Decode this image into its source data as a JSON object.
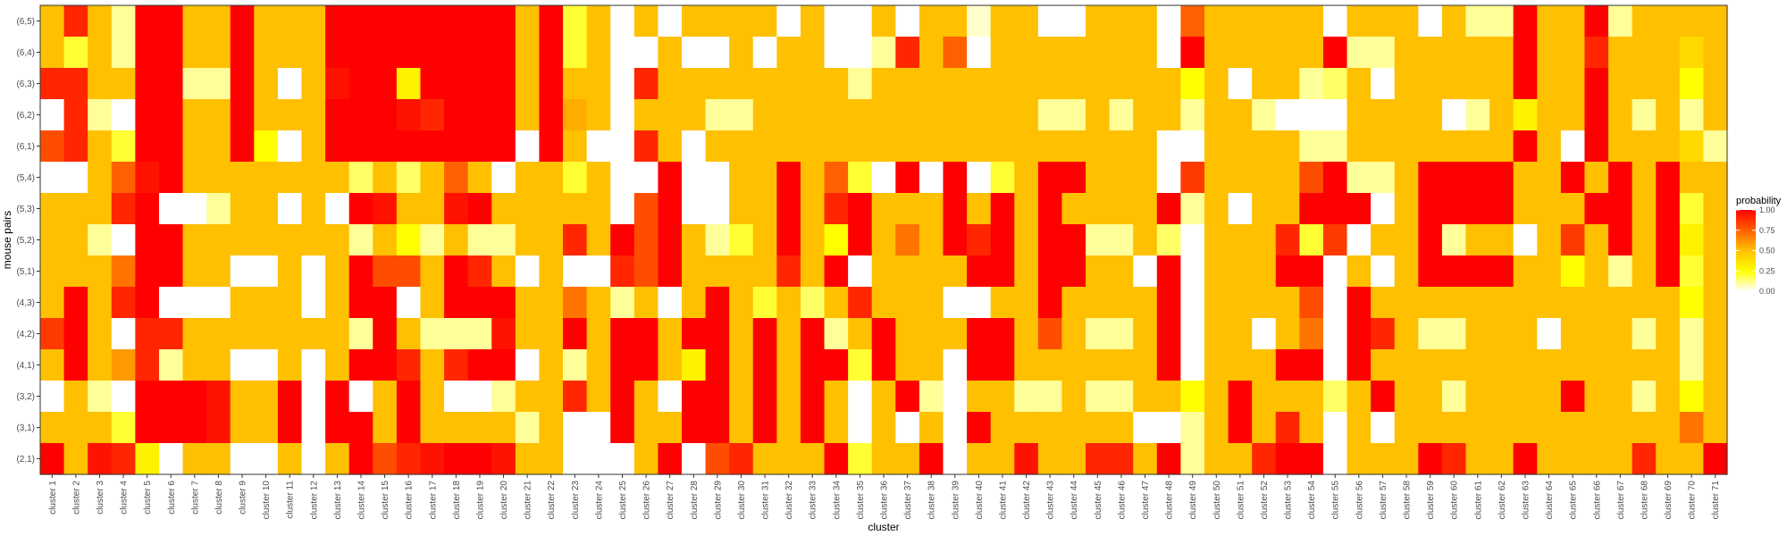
{
  "chart_data": {
    "type": "heatmap",
    "title": "",
    "xlabel": "cluster",
    "ylabel": "mouse pairs",
    "legend": {
      "title": "probability",
      "position": "right",
      "ticks": [
        "1.00",
        "0.75",
        "0.50",
        "0.25",
        "0.00"
      ],
      "tick_values": [
        1.0,
        0.75,
        0.5,
        0.25,
        0.0
      ]
    },
    "color_scale": {
      "low": "#ffffff",
      "mid_low": "#ffff00",
      "mid": "#ffc000",
      "high": "#ff0000"
    },
    "value_range": [
      0,
      1
    ],
    "grid": false,
    "categories": [
      "cluster 1",
      "cluster 2",
      "cluster 3",
      "cluster 4",
      "cluster 5",
      "cluster 6",
      "cluster 7",
      "cluster 8",
      "cluster 9",
      "cluster 10",
      "cluster 11",
      "cluster 12",
      "cluster 13",
      "cluster 14",
      "cluster 15",
      "cluster 16",
      "cluster 17",
      "cluster 18",
      "cluster 19",
      "cluster 20",
      "cluster 21",
      "cluster 22",
      "cluster 23",
      "cluster 24",
      "cluster 25",
      "cluster 26",
      "cluster 27",
      "cluster 28",
      "cluster 29",
      "cluster 30",
      "cluster 31",
      "cluster 32",
      "cluster 33",
      "cluster 34",
      "cluster 35",
      "cluster 36",
      "cluster 37",
      "cluster 38",
      "cluster 39",
      "cluster 40",
      "cluster 41",
      "cluster 42",
      "cluster 43",
      "cluster 44",
      "cluster 45",
      "cluster 46",
      "cluster 47",
      "cluster 48",
      "cluster 49",
      "cluster 50",
      "cluster 51",
      "cluster 52",
      "cluster 53",
      "cluster 54",
      "cluster 55",
      "cluster 56",
      "cluster 57",
      "cluster 58",
      "cluster 59",
      "cluster 60",
      "cluster 61",
      "cluster 62",
      "cluster 63",
      "cluster 64",
      "cluster 65",
      "cluster 66",
      "cluster 67",
      "cluster 68",
      "cluster 69",
      "cluster 70",
      "cluster 71"
    ],
    "rows": [
      "(6,5)",
      "(6,4)",
      "(6,3)",
      "(6,2)",
      "(6,1)",
      "(5,4)",
      "(5,3)",
      "(5,2)",
      "(5,1)",
      "(4,3)",
      "(4,2)",
      "(4,1)",
      "(3,2)",
      "(3,1)",
      "(2,1)"
    ],
    "values": [
      [
        0.5,
        0.9,
        0.5,
        0.1,
        1,
        1,
        0.5,
        0.5,
        1,
        0.5,
        0.5,
        0.5,
        1,
        1,
        1,
        1,
        1,
        1,
        1,
        1,
        0.5,
        1,
        0.2,
        0.5,
        0,
        0.5,
        0,
        0.5,
        0.5,
        0.5,
        0.5,
        0,
        0.5,
        0,
        0,
        0.5,
        0,
        0.5,
        0.5,
        0.05,
        0.5,
        0.5,
        0,
        0,
        0.5,
        0.5,
        0.5,
        0,
        0.75,
        0.5,
        0.5,
        0.5,
        0.5,
        0.5,
        0,
        0.5,
        0.5,
        0.5,
        0,
        0.5,
        0.1,
        0.1,
        1,
        0.5,
        0.5,
        1,
        0.1,
        0.5,
        0.5,
        0.5,
        0.5
      ],
      [
        0.5,
        0.2,
        0.5,
        0.1,
        1,
        1,
        0.5,
        0.5,
        1,
        0.5,
        0.5,
        0.5,
        1,
        1,
        1,
        1,
        1,
        1,
        1,
        1,
        0.5,
        1,
        0.2,
        0.5,
        0,
        0,
        0.5,
        0,
        0,
        0.5,
        0,
        0.5,
        0.5,
        0,
        0,
        0.1,
        0.9,
        0.5,
        0.75,
        0,
        0.5,
        0.5,
        0.5,
        0.5,
        0.5,
        0.5,
        0.5,
        0,
        1,
        0.5,
        0.5,
        0.5,
        0.5,
        0.5,
        1,
        0.1,
        0.1,
        0.5,
        0.5,
        0.5,
        0.5,
        0.5,
        1,
        0.5,
        0.5,
        0.9,
        0.5,
        0.5,
        0.5,
        0.4,
        0.5
      ],
      [
        0.9,
        0.9,
        0.5,
        0.5,
        1,
        1,
        0.1,
        0.1,
        1,
        0.5,
        0,
        0.5,
        0.95,
        1,
        1,
        0.3,
        1,
        1,
        1,
        1,
        0.5,
        1,
        0.5,
        0.5,
        0,
        0.9,
        0.5,
        0.5,
        0.5,
        0.5,
        0.5,
        0.5,
        0.5,
        0.5,
        0.1,
        0.5,
        0.5,
        0.5,
        0.5,
        0.5,
        0.5,
        0.5,
        0.5,
        0.5,
        0.5,
        0.5,
        0.5,
        0.5,
        0.25,
        0.5,
        0,
        0.5,
        0.5,
        0.1,
        0.15,
        0.5,
        0,
        0.5,
        0.5,
        0.5,
        0.5,
        0.5,
        1,
        0.5,
        0.5,
        1,
        0.5,
        0.5,
        0.5,
        0.25,
        0.5
      ],
      [
        0,
        0.9,
        0.1,
        0,
        1,
        1,
        0.5,
        0.5,
        1,
        0.5,
        0.5,
        0.5,
        1,
        1,
        1,
        0.95,
        0.9,
        1,
        1,
        1,
        0.5,
        1,
        0.55,
        0.5,
        0,
        0.5,
        0.5,
        0.5,
        0.1,
        0.1,
        0.5,
        0.5,
        0.5,
        0.5,
        0.5,
        0.5,
        0.5,
        0.5,
        0.5,
        0.5,
        0.5,
        0.5,
        0.1,
        0.1,
        0.5,
        0.1,
        0.5,
        0.5,
        0.1,
        0.5,
        0.5,
        0.1,
        0,
        0,
        0,
        0.5,
        0.5,
        0.5,
        0.5,
        0,
        0.1,
        0.5,
        0.3,
        0.5,
        0.5,
        1,
        0.5,
        0.1,
        0.5,
        0.1,
        0.5
      ],
      [
        0.8,
        0.9,
        0.5,
        0.2,
        1,
        1,
        0.5,
        0.5,
        1,
        0.25,
        0,
        0.5,
        1,
        1,
        1,
        1,
        1,
        1,
        1,
        1,
        0,
        1,
        0.5,
        0,
        0,
        0.9,
        0.5,
        0,
        0.5,
        0.5,
        0.5,
        0.5,
        0.5,
        0.5,
        0.5,
        0.5,
        0.5,
        0.5,
        0.5,
        0.5,
        0.5,
        0.5,
        0.5,
        0.5,
        0.5,
        0.5,
        0.5,
        0,
        0,
        0.5,
        0.5,
        0.5,
        0.5,
        0.1,
        0.1,
        0.5,
        0.5,
        0.5,
        0.5,
        0.5,
        0.5,
        0.5,
        1,
        0.5,
        0,
        1,
        0.5,
        0.5,
        0.5,
        0.4,
        0.1
      ],
      [
        0,
        0,
        0.5,
        0.75,
        0.95,
        1,
        0.5,
        0.5,
        0.5,
        0.5,
        0.5,
        0.5,
        0.5,
        0.15,
        0.5,
        0.15,
        0.5,
        0.75,
        0.5,
        0,
        0.5,
        0.5,
        0.2,
        0.5,
        0,
        0,
        1,
        0,
        0,
        0.5,
        0.5,
        1,
        0.5,
        0.75,
        0.2,
        0,
        1,
        0,
        1,
        0,
        0.2,
        0.5,
        1,
        1,
        0.5,
        0.5,
        0.5,
        0,
        0.85,
        0.5,
        0.5,
        0.5,
        0.5,
        0.8,
        1,
        0.1,
        0.1,
        0.5,
        1,
        1,
        1,
        1,
        0.5,
        0.5,
        1,
        0.5,
        1,
        0.5,
        1,
        0.5,
        0.5
      ],
      [
        0.5,
        0.5,
        0.5,
        0.9,
        1,
        0,
        0,
        0.1,
        0.5,
        0.5,
        0,
        0.5,
        0,
        1,
        0.95,
        0.5,
        0.5,
        0.95,
        1,
        0.5,
        0.5,
        0.5,
        0.5,
        0.5,
        0,
        0.8,
        1,
        0,
        0,
        0.5,
        0.5,
        1,
        0.5,
        0.9,
        1,
        0.5,
        0.5,
        0.5,
        1,
        0.5,
        1,
        0.5,
        1,
        0.5,
        0.5,
        0.5,
        0.5,
        1,
        0.1,
        0.5,
        0,
        0.5,
        0.5,
        1,
        1,
        1,
        0,
        0.5,
        1,
        1,
        1,
        1,
        0.5,
        0.5,
        0.5,
        1,
        1,
        0.5,
        1,
        0.2,
        0.5
      ],
      [
        0.5,
        0.5,
        0.1,
        0,
        1,
        1,
        0.5,
        0.5,
        0.5,
        0.5,
        0.5,
        0.5,
        0.5,
        0.1,
        0.5,
        0.25,
        0.1,
        0.5,
        0.1,
        0.1,
        0.5,
        0.5,
        0.9,
        0.5,
        1,
        0.8,
        1,
        0.5,
        0.1,
        0.2,
        0.5,
        1,
        0.5,
        0.25,
        1,
        0.5,
        0.7,
        0.5,
        1,
        0.9,
        1,
        0.5,
        1,
        1,
        0.1,
        0.1,
        0.5,
        0.15,
        0,
        0.5,
        0.5,
        0.5,
        0.9,
        0.2,
        0.85,
        0,
        0.5,
        0.5,
        1,
        0.1,
        0.5,
        0.5,
        0,
        0.5,
        0.85,
        0.5,
        1,
        0.5,
        1,
        0.3,
        0.5
      ],
      [
        0.5,
        0.5,
        0.5,
        0.7,
        1,
        1,
        0.5,
        0.5,
        0,
        0,
        0.5,
        0,
        0.5,
        1,
        0.8,
        0.8,
        0.5,
        1,
        0.9,
        0.5,
        0,
        0.5,
        0,
        0,
        0.9,
        0.8,
        1,
        0.5,
        0.5,
        0.5,
        0.5,
        0.9,
        0.5,
        1,
        0,
        0.5,
        0.5,
        0.5,
        0.5,
        1,
        1,
        0.5,
        1,
        1,
        0.5,
        0.5,
        0,
        1,
        0,
        0.5,
        0.5,
        0.5,
        1,
        1,
        0,
        0.5,
        0,
        0.5,
        1,
        1,
        1,
        1,
        0.5,
        0.5,
        0.25,
        0.5,
        0.1,
        0.5,
        1,
        0.2,
        0.5
      ],
      [
        0.5,
        1,
        0.5,
        0.9,
        1,
        0,
        0,
        0,
        0.5,
        0.5,
        0.5,
        0,
        0.5,
        1,
        1,
        0,
        0.5,
        1,
        1,
        1,
        0.5,
        0.5,
        0.7,
        0.5,
        0.1,
        0.5,
        0,
        0.5,
        1,
        0.5,
        0.2,
        0.5,
        0.15,
        0.5,
        0.9,
        0.5,
        0.5,
        0.5,
        0,
        0,
        0.5,
        0.5,
        1,
        0.5,
        0.5,
        0.5,
        0.5,
        1,
        0,
        0.5,
        0.5,
        0.5,
        0.5,
        0.8,
        0,
        1,
        0.5,
        0.5,
        0.5,
        0.5,
        0.5,
        0.5,
        0.5,
        0.5,
        0.5,
        0.5,
        0.5,
        0.5,
        0.5,
        0.25,
        0.5
      ],
      [
        0.85,
        1,
        0.5,
        0,
        0.9,
        0.9,
        0.5,
        0.5,
        0.5,
        0.5,
        0.5,
        0.5,
        0.5,
        0.1,
        1,
        0.5,
        0.1,
        0.1,
        0.1,
        0.95,
        0.5,
        0.5,
        1,
        0.5,
        1,
        1,
        0.5,
        1,
        1,
        0.5,
        1,
        0.5,
        1,
        0.1,
        0.5,
        1,
        0.5,
        0.5,
        0.5,
        1,
        1,
        0.5,
        0.8,
        0.5,
        0.1,
        0.1,
        0.5,
        1,
        0,
        0.5,
        0.5,
        0,
        0.5,
        0.7,
        0,
        1,
        0.9,
        0.5,
        0.1,
        0.1,
        0.5,
        0.5,
        0.5,
        0,
        0.5,
        0.5,
        0.5,
        0.1,
        0.5,
        0.1,
        0.5
      ],
      [
        0.5,
        1,
        0.5,
        0.6,
        0.9,
        0.1,
        0.5,
        0.5,
        0,
        0,
        0.5,
        0,
        0.5,
        1,
        1,
        0.9,
        0.5,
        0.9,
        1,
        1,
        0,
        0.5,
        0.1,
        0.5,
        1,
        1,
        0.5,
        0.3,
        1,
        0.5,
        1,
        0.5,
        1,
        1,
        0.2,
        1,
        0.5,
        0.5,
        0,
        1,
        1,
        0.5,
        0.5,
        0.5,
        0.5,
        0.5,
        0.5,
        1,
        0,
        0.5,
        0.5,
        0.5,
        1,
        1,
        0,
        1,
        0.5,
        0.5,
        0.5,
        0.5,
        0.5,
        0.5,
        0.5,
        0.5,
        0.5,
        0.5,
        0.5,
        0.5,
        0.5,
        0.1,
        0.5
      ],
      [
        0,
        0.5,
        0.1,
        0,
        1,
        1,
        1,
        0.95,
        0.5,
        0.5,
        1,
        0,
        1,
        0,
        0.5,
        1,
        0.5,
        0,
        0,
        0.1,
        0.5,
        0.5,
        0.9,
        0.5,
        1,
        0.5,
        0,
        1,
        1,
        0.5,
        1,
        0.5,
        1,
        0.5,
        0,
        0.5,
        1,
        0.1,
        0,
        0.5,
        0.5,
        0.1,
        0.1,
        0.5,
        0.1,
        0.1,
        0.5,
        0.5,
        0.25,
        0.5,
        1,
        0.5,
        0.5,
        0.5,
        0.15,
        0.5,
        1,
        0.5,
        0.5,
        0.1,
        0.5,
        0.5,
        0.5,
        0.5,
        1,
        0.5,
        0.5,
        0.1,
        0.5,
        0.25,
        0.5
      ],
      [
        0.5,
        0.5,
        0.5,
        0.2,
        1,
        1,
        1,
        0.95,
        0.5,
        0.5,
        1,
        0,
        1,
        1,
        0.5,
        1,
        0.5,
        0.5,
        0.5,
        0.5,
        0.1,
        0.5,
        0,
        0,
        1,
        0.5,
        0.5,
        1,
        1,
        0.5,
        1,
        0.5,
        1,
        0.5,
        0,
        0.5,
        0,
        0.5,
        0,
        1,
        0.5,
        0.5,
        0.5,
        0.5,
        0.5,
        0.5,
        0,
        0,
        0.1,
        0.5,
        1,
        0.5,
        0.9,
        0.5,
        0,
        0.5,
        0,
        0.5,
        0.5,
        0.5,
        0.5,
        0.5,
        0.5,
        0.5,
        0.5,
        0.5,
        0.5,
        0.5,
        0.5,
        0.7,
        0.5
      ],
      [
        1,
        0.5,
        0.95,
        0.9,
        0.3,
        0,
        0.5,
        0.5,
        0,
        0,
        0.5,
        0,
        0.5,
        1,
        0.8,
        0.9,
        0.95,
        1,
        1,
        0.95,
        0.5,
        0.5,
        0,
        0,
        0,
        0.5,
        1,
        0,
        0.8,
        0.9,
        0.5,
        0.5,
        0.5,
        1,
        0.2,
        0.5,
        0.5,
        1,
        0,
        0.5,
        0.5,
        0.95,
        0.5,
        0.5,
        0.9,
        0.9,
        0.5,
        1,
        0.1,
        0.5,
        0.5,
        0.9,
        1,
        1,
        0,
        0.5,
        0.5,
        0.5,
        1,
        0.9,
        0.5,
        0.5,
        1,
        0.5,
        0.5,
        0.5,
        0.5,
        0.9,
        0.5,
        0.5,
        1
      ]
    ]
  }
}
